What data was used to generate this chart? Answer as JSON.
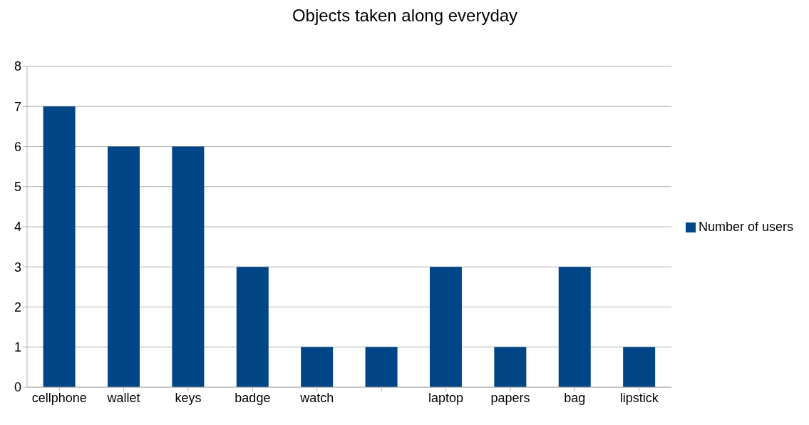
{
  "chart_data": {
    "type": "bar",
    "title": "Objects taken along everyday",
    "categories": [
      "cellphone",
      "wallet",
      "keys",
      "badge",
      "watch",
      null,
      "laptop",
      "papers",
      "bag",
      "lipstick"
    ],
    "series": [
      {
        "name": "Number of users",
        "color": "#004586",
        "values": [
          7,
          6,
          6,
          3,
          1,
          1,
          3,
          1,
          3,
          1
        ]
      }
    ],
    "ylim": [
      0,
      8
    ],
    "yticks": [
      0,
      1,
      2,
      3,
      4,
      5,
      6,
      7,
      8
    ],
    "grid": "y",
    "legend": "right"
  }
}
